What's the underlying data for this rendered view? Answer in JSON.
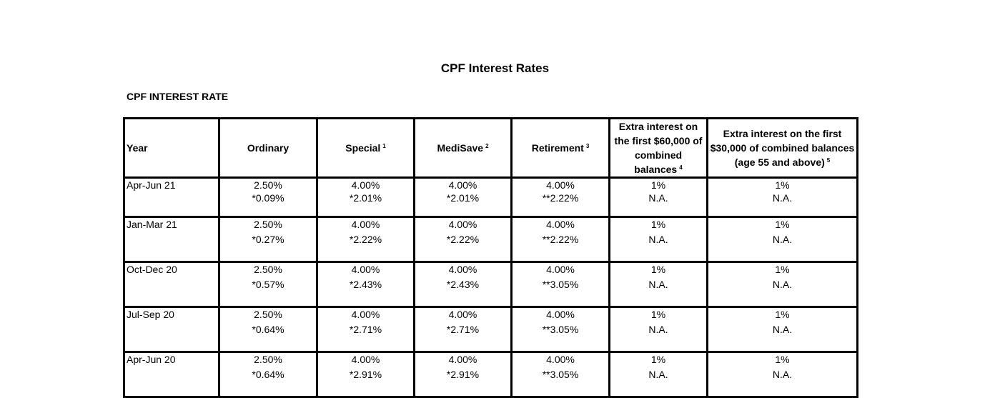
{
  "page_title": "CPF Interest Rates",
  "section_heading": "CPF INTEREST RATE",
  "table": {
    "headers": {
      "year": "Year",
      "ordinary": "Ordinary",
      "special": "Special",
      "special_note": "1",
      "medisave": "MediSave",
      "medisave_note": "2",
      "retirement": "Retirement",
      "retirement_note": "3",
      "extra_60k": "Extra interest on the first $60,000 of combined balances",
      "extra_60k_note": "4",
      "extra_30k": "Extra interest on the first $30,000 of combined balances (age 55 and above)",
      "extra_30k_note": "5"
    },
    "rows": [
      {
        "year": "Apr-Jun 21",
        "ordinary": [
          "2.50%",
          "*0.09%"
        ],
        "special": [
          "4.00%",
          "*2.01%"
        ],
        "medisave": [
          "4.00%",
          "*2.01%"
        ],
        "retirement": [
          "4.00%",
          "**2.22%"
        ],
        "extra_60k": [
          "1%",
          "N.A."
        ],
        "extra_30k": [
          "1%",
          "N.A."
        ]
      },
      {
        "year": "Jan-Mar 21",
        "ordinary": [
          "2.50%",
          "*0.27%"
        ],
        "special": [
          "4.00%",
          "*2.22%"
        ],
        "medisave": [
          "4.00%",
          "*2.22%"
        ],
        "retirement": [
          "4.00%",
          "**2.22%"
        ],
        "extra_60k": [
          "1%",
          "N.A."
        ],
        "extra_30k": [
          "1%",
          "N.A."
        ]
      },
      {
        "year": "Oct-Dec 20",
        "ordinary": [
          "2.50%",
          "*0.57%"
        ],
        "special": [
          "4.00%",
          "*2.43%"
        ],
        "medisave": [
          "4.00%",
          "*2.43%"
        ],
        "retirement": [
          "4.00%",
          "**3.05%"
        ],
        "extra_60k": [
          "1%",
          "N.A."
        ],
        "extra_30k": [
          "1%",
          "N.A."
        ]
      },
      {
        "year": "Jul-Sep 20",
        "ordinary": [
          "2.50%",
          "*0.64%"
        ],
        "special": [
          "4.00%",
          "*2.71%"
        ],
        "medisave": [
          "4.00%",
          "*2.71%"
        ],
        "retirement": [
          "4.00%",
          "**3.05%"
        ],
        "extra_60k": [
          "1%",
          "N.A."
        ],
        "extra_30k": [
          "1%",
          "N.A."
        ]
      },
      {
        "year": "Apr-Jun 20",
        "ordinary": [
          "2.50%",
          "*0.64%"
        ],
        "special": [
          "4.00%",
          "*2.91%"
        ],
        "medisave": [
          "4.00%",
          "*2.91%"
        ],
        "retirement": [
          "4.00%",
          "**3.05%"
        ],
        "extra_60k": [
          "1%",
          "N.A."
        ],
        "extra_30k": [
          "1%",
          "N.A."
        ]
      }
    ]
  }
}
